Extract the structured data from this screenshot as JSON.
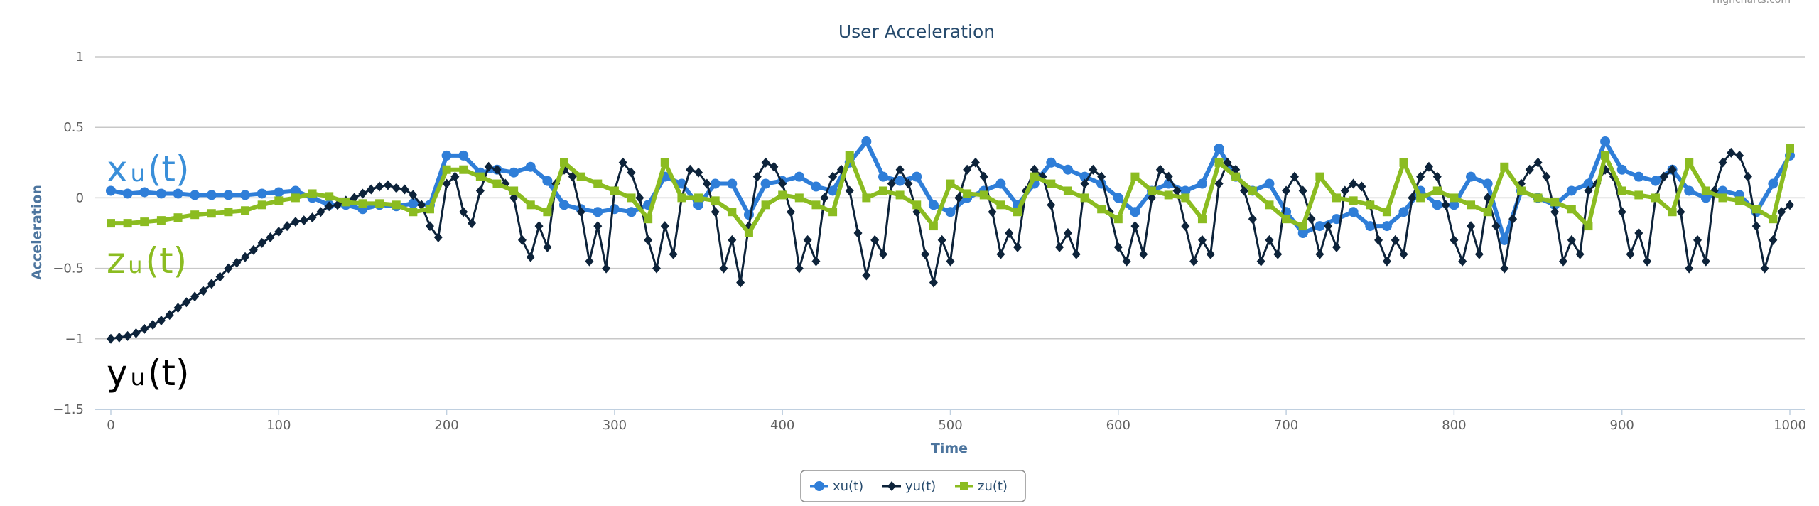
{
  "chart_data": {
    "type": "line",
    "title": "User Acceleration",
    "credits": "Highcharts.com",
    "xlabel": "Time",
    "ylabel": "Acceleration",
    "xlim": [
      0,
      1000
    ],
    "ylim": [
      -1.5,
      1
    ],
    "x_ticks": [
      "0",
      "100",
      "200",
      "300",
      "400",
      "500",
      "600",
      "700",
      "800",
      "900",
      "1000"
    ],
    "y_ticks": [
      "1",
      "0.5",
      "0",
      "−0.5",
      "−1",
      "−1.5"
    ],
    "grid": "horizontal",
    "legend_position": "bottom-center",
    "series": [
      {
        "name": "xu(t)",
        "color": "#2f7ed8",
        "marker": "circle",
        "x_start": 0,
        "x_interval": 10,
        "values": [
          0.05,
          0.03,
          0.04,
          0.03,
          0.03,
          0.02,
          0.02,
          0.02,
          0.02,
          0.03,
          0.04,
          0.05,
          0.0,
          -0.05,
          -0.05,
          -0.08,
          -0.05,
          -0.06,
          -0.04,
          -0.05,
          0.3,
          0.3,
          0.18,
          0.2,
          0.18,
          0.22,
          0.12,
          -0.05,
          -0.08,
          -0.1,
          -0.08,
          -0.1,
          -0.05,
          0.15,
          0.1,
          -0.05,
          0.1,
          0.1,
          -0.12,
          0.1,
          0.12,
          0.15,
          0.08,
          0.05,
          0.25,
          0.4,
          0.15,
          0.12,
          0.15,
          -0.05,
          -0.1,
          0.0,
          0.05,
          0.1,
          -0.05,
          0.1,
          0.25,
          0.2,
          0.15,
          0.1,
          0.0,
          -0.1,
          0.05,
          0.1,
          0.05,
          0.1,
          0.35,
          0.15,
          0.05,
          0.1,
          -0.1,
          -0.25,
          -0.2,
          -0.15,
          -0.1,
          -0.2,
          -0.2,
          -0.1,
          0.05,
          -0.05,
          -0.05,
          0.15,
          0.1,
          -0.3,
          0.05,
          0.0,
          -0.05,
          0.05,
          0.1,
          0.4,
          0.2,
          0.15,
          0.12,
          0.2,
          0.05,
          0.0,
          0.05,
          0.02,
          -0.1,
          0.1,
          0.3
        ]
      },
      {
        "name": "yu(t)",
        "color": "#0d233a",
        "marker": "diamond",
        "x_start": 0,
        "x_interval": 5,
        "values": [
          -1,
          -0.99,
          -0.98,
          -0.96,
          -0.93,
          -0.9,
          -0.87,
          -0.83,
          -0.78,
          -0.74,
          -0.7,
          -0.66,
          -0.61,
          -0.56,
          -0.5,
          -0.46,
          -0.42,
          -0.37,
          -0.32,
          -0.28,
          -0.24,
          -0.2,
          -0.17,
          -0.16,
          -0.14,
          -0.1,
          -0.06,
          -0.05,
          -0.02,
          0.0,
          0.03,
          0.06,
          0.08,
          0.09,
          0.07,
          0.06,
          0.02,
          -0.05,
          -0.2,
          -0.28,
          0.1,
          0.15,
          -0.1,
          -0.18,
          0.05,
          0.22,
          0.2,
          0.1,
          0.0,
          -0.3,
          -0.42,
          -0.2,
          -0.35,
          0.1,
          0.2,
          0.15,
          -0.1,
          -0.45,
          -0.2,
          -0.5,
          0.05,
          0.25,
          0.18,
          0.0,
          -0.3,
          -0.5,
          -0.2,
          -0.4,
          0.0,
          0.2,
          0.18,
          0.1,
          -0.1,
          -0.5,
          -0.3,
          -0.6,
          -0.2,
          0.15,
          0.25,
          0.22,
          0.1,
          -0.1,
          -0.5,
          -0.3,
          -0.45,
          0.0,
          0.15,
          0.2,
          0.05,
          -0.25,
          -0.55,
          -0.3,
          -0.4,
          0.1,
          0.2,
          0.1,
          -0.1,
          -0.4,
          -0.6,
          -0.3,
          -0.45,
          0.0,
          0.2,
          0.25,
          0.15,
          -0.1,
          -0.4,
          -0.25,
          -0.35,
          0.05,
          0.2,
          0.15,
          -0.05,
          -0.35,
          -0.25,
          -0.4,
          0.1,
          0.2,
          0.15,
          -0.1,
          -0.35,
          -0.45,
          -0.2,
          -0.4,
          0.0,
          0.2,
          0.15,
          0.05,
          -0.2,
          -0.45,
          -0.3,
          -0.4,
          0.1,
          0.25,
          0.2,
          0.05,
          -0.15,
          -0.45,
          -0.3,
          -0.4,
          0.05,
          0.15,
          0.05,
          -0.15,
          -0.4,
          -0.2,
          -0.35,
          0.05,
          0.1,
          0.08,
          -0.05,
          -0.3,
          -0.45,
          -0.3,
          -0.4,
          0.0,
          0.15,
          0.22,
          0.15,
          -0.05,
          -0.3,
          -0.45,
          -0.2,
          -0.4,
          0.0,
          -0.2,
          -0.5,
          -0.15,
          0.1,
          0.2,
          0.25,
          0.15,
          -0.1,
          -0.45,
          -0.3,
          -0.4,
          0.05,
          0.1,
          0.2,
          0.15,
          -0.1,
          -0.4,
          -0.25,
          -0.45,
          0.0,
          0.15,
          0.2,
          -0.1,
          -0.5,
          -0.3,
          -0.45,
          0.05,
          0.25,
          0.32,
          0.3,
          0.15,
          -0.2,
          -0.5,
          -0.3,
          -0.1,
          -0.05
        ]
      },
      {
        "name": "zu(t)",
        "color": "#8bbc21",
        "marker": "square",
        "x_start": 0,
        "x_interval": 10,
        "values": [
          -0.18,
          -0.18,
          -0.17,
          -0.16,
          -0.14,
          -0.12,
          -0.11,
          -0.1,
          -0.09,
          -0.05,
          -0.02,
          0.0,
          0.03,
          0.01,
          -0.03,
          -0.04,
          -0.04,
          -0.05,
          -0.1,
          -0.08,
          0.2,
          0.2,
          0.15,
          0.1,
          0.05,
          -0.05,
          -0.1,
          0.25,
          0.15,
          0.1,
          0.05,
          0.0,
          -0.15,
          0.25,
          0.0,
          0.0,
          -0.02,
          -0.1,
          -0.25,
          -0.05,
          0.02,
          0.0,
          -0.05,
          -0.1,
          0.3,
          0.0,
          0.05,
          0.02,
          -0.05,
          -0.2,
          0.1,
          0.03,
          0.02,
          -0.05,
          -0.1,
          0.15,
          0.1,
          0.05,
          0.0,
          -0.08,
          -0.15,
          0.15,
          0.05,
          0.02,
          0.0,
          -0.15,
          0.25,
          0.15,
          0.05,
          -0.05,
          -0.15,
          -0.2,
          0.15,
          0.0,
          -0.02,
          -0.05,
          -0.1,
          0.25,
          0.0,
          0.05,
          0.0,
          -0.05,
          -0.1,
          0.22,
          0.05,
          0.0,
          -0.03,
          -0.08,
          -0.2,
          0.3,
          0.05,
          0.02,
          0.0,
          -0.1,
          0.25,
          0.05,
          0.0,
          -0.02,
          -0.08,
          -0.15,
          0.35
        ]
      }
    ],
    "annotations": [
      {
        "base": "x",
        "sub": "u",
        "tail": "(t)",
        "color": "#3a8fd9"
      },
      {
        "base": "z",
        "sub": "u",
        "tail": "(t)",
        "color": "#8bbc21"
      },
      {
        "base": "y",
        "sub": "u",
        "tail": "(t)",
        "color": "#000000"
      }
    ]
  }
}
